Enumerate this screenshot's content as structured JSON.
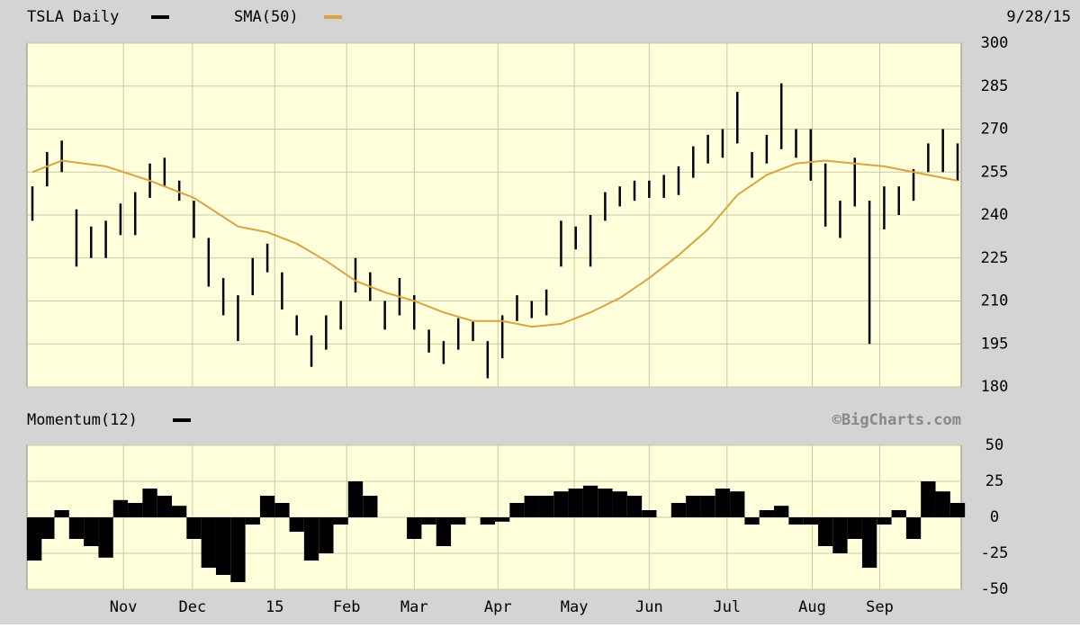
{
  "chart_data": [
    {
      "type": "stock",
      "title": "TSLA Daily",
      "date": "9/28/15",
      "x": [
        0,
        1,
        2,
        3,
        4,
        5,
        6,
        7,
        8,
        9,
        10,
        11,
        12,
        13,
        14,
        15,
        16,
        17,
        18,
        19,
        20,
        21,
        22,
        23,
        24,
        25,
        26,
        27,
        28,
        29,
        30,
        31,
        32,
        33,
        34,
        35,
        36,
        37,
        38,
        39,
        40,
        41,
        42,
        43,
        44,
        45,
        46,
        47,
        48,
        49,
        50,
        51,
        52,
        53,
        54,
        55,
        56,
        57,
        58,
        59,
        60,
        61,
        62,
        63
      ],
      "xlim": [
        0,
        63
      ],
      "ylim": [
        180,
        300
      ],
      "yticks": [
        180,
        195,
        210,
        225,
        240,
        255,
        270,
        285,
        300
      ],
      "grid": true,
      "series": [
        {
          "name": "TSLA Daily",
          "color": "#000000",
          "high": [
            250,
            262,
            266,
            242,
            236,
            238,
            244,
            248,
            258,
            260,
            252,
            245,
            232,
            218,
            212,
            225,
            230,
            220,
            205,
            198,
            205,
            210,
            225,
            220,
            210,
            218,
            212,
            200,
            196,
            204,
            203,
            196,
            205,
            212,
            210,
            214,
            238,
            236,
            240,
            248,
            250,
            252,
            252,
            254,
            257,
            264,
            268,
            270,
            283,
            262,
            268,
            286,
            270,
            270,
            258,
            245,
            260,
            245,
            250,
            250,
            256,
            265,
            270,
            265
          ],
          "low": [
            238,
            250,
            255,
            222,
            225,
            225,
            233,
            233,
            246,
            250,
            245,
            232,
            215,
            205,
            196,
            212,
            220,
            207,
            198,
            187,
            193,
            200,
            213,
            210,
            200,
            205,
            200,
            192,
            188,
            193,
            196,
            183,
            190,
            203,
            204,
            205,
            222,
            228,
            222,
            238,
            243,
            245,
            246,
            246,
            247,
            253,
            258,
            260,
            265,
            253,
            258,
            263,
            260,
            252,
            236,
            232,
            243,
            195,
            235,
            240,
            245,
            255,
            255,
            252
          ]
        },
        {
          "name": "SMA(50)",
          "color": "#d9a441",
          "x": [
            0,
            2,
            5,
            8,
            11,
            14,
            16,
            18,
            20,
            22,
            24,
            26,
            28,
            30,
            32,
            34,
            36,
            38,
            40,
            42,
            44,
            46,
            48,
            50,
            52,
            54,
            56,
            58,
            60,
            62,
            63
          ],
          "values": [
            255,
            259,
            257,
            252,
            246,
            236,
            234,
            230,
            224,
            217,
            213,
            210,
            206,
            203,
            203,
            201,
            202,
            206,
            211,
            218,
            226,
            235,
            247,
            254,
            258,
            259,
            258,
            257,
            255,
            253,
            252
          ]
        }
      ]
    },
    {
      "type": "area",
      "credit": "©BigCharts.com",
      "xlim": [
        0,
        63
      ],
      "ylim": [
        -50,
        50
      ],
      "yticks": [
        -50,
        -25,
        0,
        25,
        50
      ],
      "grid": true,
      "xticks": [
        {
          "value": 6.2,
          "label": "Nov"
        },
        {
          "value": 10.9,
          "label": "Dec"
        },
        {
          "value": 16.5,
          "label": "15"
        },
        {
          "value": 21.4,
          "label": "Feb"
        },
        {
          "value": 26.0,
          "label": "Mar"
        },
        {
          "value": 31.7,
          "label": "Apr"
        },
        {
          "value": 36.9,
          "label": "May"
        },
        {
          "value": 42.0,
          "label": "Jun"
        },
        {
          "value": 47.3,
          "label": "Jul"
        },
        {
          "value": 53.1,
          "label": "Aug"
        },
        {
          "value": 57.7,
          "label": "Sep"
        }
      ],
      "series": [
        {
          "name": "Momentum(12)",
          "color": "#000000",
          "values": [
            -30,
            -15,
            5,
            -15,
            -20,
            -28,
            12,
            10,
            20,
            15,
            8,
            -15,
            -35,
            -40,
            -45,
            -5,
            15,
            10,
            -10,
            -30,
            -25,
            -5,
            25,
            15,
            0,
            0,
            -15,
            -5,
            -20,
            -5,
            0,
            -5,
            -3,
            10,
            15,
            15,
            18,
            20,
            22,
            20,
            18,
            15,
            5,
            0,
            10,
            15,
            15,
            20,
            18,
            -5,
            5,
            8,
            -5,
            -5,
            -20,
            -25,
            -15,
            -35,
            -5,
            5,
            -15,
            25,
            18,
            10
          ]
        }
      ]
    }
  ]
}
